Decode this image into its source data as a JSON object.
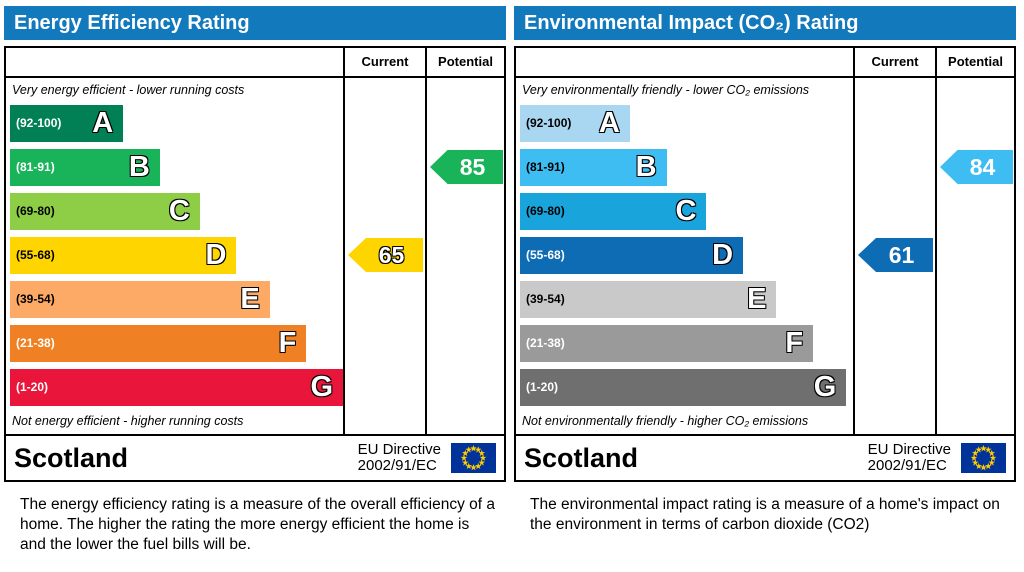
{
  "colors": {
    "header_bg": "#1279bd",
    "eu_flag_blue": "#003399",
    "eu_flag_stars": "#ffcc00"
  },
  "panels": [
    {
      "header": "Energy Efficiency Rating",
      "columns": {
        "current": "Current",
        "potential": "Potential"
      },
      "top_note": "Very energy efficient - lower running costs",
      "bottom_note": "Not energy efficient - higher running costs",
      "bands": [
        {
          "letter": "A",
          "range": "(92-100)",
          "color": "#008054",
          "width_pct": 34,
          "range_color": "#ffffff"
        },
        {
          "letter": "B",
          "range": "(81-91)",
          "color": "#19b459",
          "width_pct": 45,
          "range_color": "#ffffff"
        },
        {
          "letter": "C",
          "range": "(69-80)",
          "color": "#8dce46",
          "width_pct": 57,
          "range_color": "#000000"
        },
        {
          "letter": "D",
          "range": "(55-68)",
          "color": "#ffd500",
          "width_pct": 68,
          "range_color": "#000000"
        },
        {
          "letter": "E",
          "range": "(39-54)",
          "color": "#fcaa65",
          "width_pct": 78,
          "range_color": "#000000"
        },
        {
          "letter": "F",
          "range": "(21-38)",
          "color": "#ef8023",
          "width_pct": 89,
          "range_color": "#ffffff"
        },
        {
          "letter": "G",
          "range": "(1-20)",
          "color": "#e9153b",
          "width_pct": 100,
          "range_color": "#ffffff"
        }
      ],
      "current": {
        "value": "65",
        "band_index": 3,
        "color": "#ffd500",
        "text_outline": true
      },
      "potential": {
        "value": "85",
        "band_index": 1,
        "color": "#19b459"
      },
      "footer": {
        "region": "Scotland",
        "directive_line1": "EU Directive",
        "directive_line2": "2002/91/EC"
      },
      "description": "The energy efficiency rating is a measure of the overall efficiency of a home.  The higher the rating the more energy efficient the home is and the lower the fuel bills will be."
    },
    {
      "header": "Environmental Impact (CO₂) Rating",
      "columns": {
        "current": "Current",
        "potential": "Potential"
      },
      "top_note": "Very environmentally friendly - lower CO₂ emissions",
      "bottom_note": "Not environmentally friendly - higher CO₂ emissions",
      "bands": [
        {
          "letter": "A",
          "range": "(92-100)",
          "color": "#a9d7f2",
          "width_pct": 33,
          "range_color": "#000000"
        },
        {
          "letter": "B",
          "range": "(81-91)",
          "color": "#3dbdf2",
          "width_pct": 44,
          "range_color": "#000000"
        },
        {
          "letter": "C",
          "range": "(69-80)",
          "color": "#19a5dc",
          "width_pct": 56,
          "range_color": "#000000"
        },
        {
          "letter": "D",
          "range": "(55-68)",
          "color": "#0d6cb4",
          "width_pct": 67,
          "range_color": "#ffffff"
        },
        {
          "letter": "E",
          "range": "(39-54)",
          "color": "#c9c9c9",
          "width_pct": 77,
          "range_color": "#000000"
        },
        {
          "letter": "F",
          "range": "(21-38)",
          "color": "#9a9a9a",
          "width_pct": 88,
          "range_color": "#ffffff"
        },
        {
          "letter": "G",
          "range": "(1-20)",
          "color": "#6f6f6f",
          "width_pct": 98,
          "range_color": "#ffffff"
        }
      ],
      "current": {
        "value": "61",
        "band_index": 3,
        "color": "#0d6cb4"
      },
      "potential": {
        "value": "84",
        "band_index": 1,
        "color": "#3dbdf2"
      },
      "footer": {
        "region": "Scotland",
        "directive_line1": "EU Directive",
        "directive_line2": "2002/91/EC"
      },
      "description": "The environmental impact rating is a measure of a home's impact on the environment in terms of carbon dioxide (CO2)"
    }
  ],
  "chart_data": [
    {
      "type": "bar",
      "title": "Energy Efficiency Rating",
      "categories": [
        "A (92-100)",
        "B (81-91)",
        "C (69-80)",
        "D (55-68)",
        "E (39-54)",
        "F (21-38)",
        "G (1-20)"
      ],
      "band_colors": [
        "#008054",
        "#19b459",
        "#8dce46",
        "#ffd500",
        "#fcaa65",
        "#ef8023",
        "#e9153b"
      ],
      "series": [
        {
          "name": "Current",
          "value": 65,
          "band": "D"
        },
        {
          "name": "Potential",
          "value": 85,
          "band": "B"
        }
      ],
      "region": "Scotland",
      "directive": "EU Directive 2002/91/EC"
    },
    {
      "type": "bar",
      "title": "Environmental Impact (CO₂) Rating",
      "categories": [
        "A (92-100)",
        "B (81-91)",
        "C (69-80)",
        "D (55-68)",
        "E (39-54)",
        "F (21-38)",
        "G (1-20)"
      ],
      "band_colors": [
        "#a9d7f2",
        "#3dbdf2",
        "#19a5dc",
        "#0d6cb4",
        "#c9c9c9",
        "#9a9a9a",
        "#6f6f6f"
      ],
      "series": [
        {
          "name": "Current",
          "value": 61,
          "band": "D"
        },
        {
          "name": "Potential",
          "value": 84,
          "band": "B"
        }
      ],
      "region": "Scotland",
      "directive": "EU Directive 2002/91/EC"
    }
  ]
}
